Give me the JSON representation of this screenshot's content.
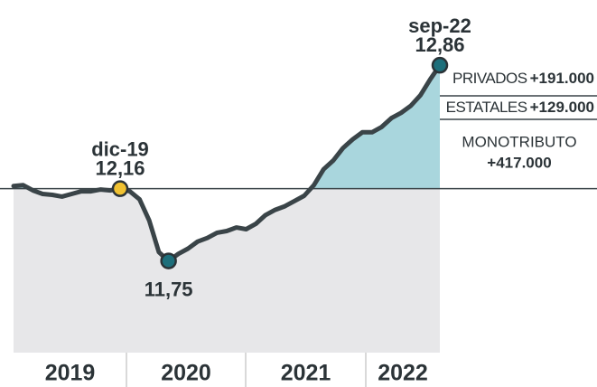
{
  "chart_data": {
    "type": "line",
    "categories": [
      null,
      null,
      null,
      null,
      null,
      null,
      null,
      null,
      null,
      null,
      null,
      "dic-19",
      null,
      null,
      null,
      null,
      null,
      null,
      null,
      null,
      null,
      null,
      null,
      null,
      null,
      null,
      null,
      null,
      null,
      null,
      null,
      null,
      null,
      null,
      null,
      null,
      null,
      null,
      null,
      null,
      null,
      null,
      null,
      null,
      "sep-22"
    ],
    "values": [
      12.175,
      12.18,
      12.15,
      12.13,
      12.125,
      12.115,
      12.13,
      12.145,
      12.145,
      12.155,
      12.15,
      12.16,
      12.145,
      12.1,
      11.98,
      11.8,
      11.75,
      11.79,
      11.82,
      11.86,
      11.88,
      11.91,
      11.92,
      11.94,
      11.93,
      11.96,
      12.01,
      12.04,
      12.06,
      12.09,
      12.12,
      12.18,
      12.27,
      12.32,
      12.39,
      12.44,
      12.48,
      12.48,
      12.51,
      12.56,
      12.59,
      12.63,
      12.69,
      12.78,
      12.86
    ],
    "value_labels": [
      null,
      null,
      null,
      null,
      null,
      null,
      null,
      null,
      null,
      null,
      null,
      "12,16",
      null,
      null,
      null,
      null,
      "11,75",
      null,
      null,
      null,
      null,
      null,
      null,
      null,
      null,
      null,
      null,
      null,
      null,
      null,
      null,
      null,
      null,
      null,
      null,
      null,
      null,
      null,
      null,
      null,
      null,
      null,
      null,
      null,
      "12,86"
    ],
    "x_axis_labels": [
      "2019",
      "2020",
      "2021",
      "2022"
    ],
    "reference_value": 12.16,
    "ylim": [
      11.23,
      13.23
    ],
    "color": "#3a4448",
    "breakdown": [
      {
        "name": "PRIVADOS",
        "label": "+191.000"
      },
      {
        "name": "ESTATALES",
        "label": "+129.000"
      },
      {
        "name": "MONOTRIBUTO",
        "label": "+417.000"
      }
    ]
  }
}
